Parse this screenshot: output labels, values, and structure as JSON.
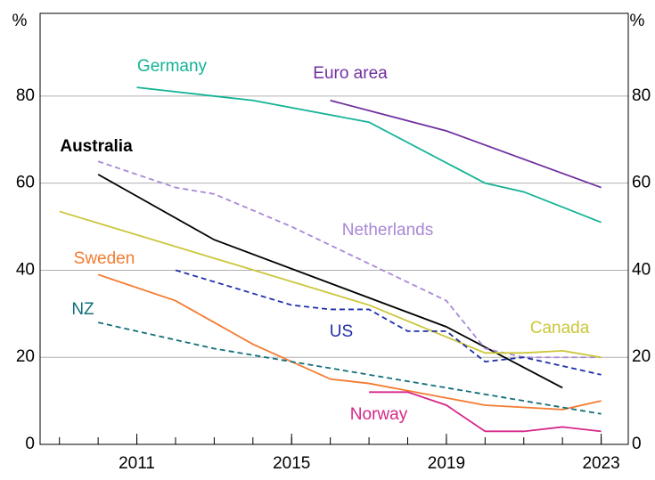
{
  "chart_data": {
    "type": "line",
    "y_unit_label": "%",
    "xlim": [
      2008.5,
      2023.7
    ],
    "xticks": [
      2011,
      2015,
      2019,
      2023
    ],
    "xminor_ticks": [
      2009,
      2010,
      2011,
      2012,
      2013,
      2014,
      2015,
      2016,
      2017,
      2018,
      2019,
      2020,
      2021,
      2022,
      2023
    ],
    "ylim": [
      0,
      99
    ],
    "yticks": [
      0,
      20,
      40,
      60,
      80
    ],
    "y2lim": [
      0,
      99
    ],
    "y2ticks": [
      0,
      20,
      40,
      60,
      80
    ],
    "grid": true,
    "series": [
      {
        "name": "Germany",
        "color": "#14b396",
        "dashed": false,
        "x": [
          2011,
          2014,
          2017,
          2020,
          2021,
          2023
        ],
        "values": [
          82,
          79,
          74,
          60,
          58,
          51
        ]
      },
      {
        "name": "Euro area",
        "color": "#7030a0",
        "dashed": false,
        "x": [
          2016,
          2019,
          2023
        ],
        "values": [
          79,
          72,
          59
        ]
      },
      {
        "name": "Australia",
        "color": "#000000",
        "dashed": false,
        "x": [
          2010,
          2013,
          2019,
          2022
        ],
        "values": [
          62,
          47,
          27,
          13
        ]
      },
      {
        "name": "Netherlands",
        "color": "#a987d6",
        "dashed": true,
        "x": [
          2010,
          2012,
          2013,
          2015,
          2019,
          2020,
          2021,
          2023
        ],
        "values": [
          65,
          59,
          57.5,
          50,
          33,
          22,
          20,
          20
        ]
      },
      {
        "name": "Canada",
        "color": "#cbc63a",
        "dashed": false,
        "x": [
          2009,
          2017,
          2020,
          2021,
          2022,
          2023
        ],
        "values": [
          53.5,
          32,
          21,
          21,
          21.5,
          20
        ]
      },
      {
        "name": "Sweden",
        "color": "#f47b30",
        "dashed": false,
        "x": [
          2010,
          2012,
          2014,
          2016,
          2017,
          2020,
          2022,
          2023
        ],
        "values": [
          39,
          33,
          23,
          15,
          14,
          9,
          8,
          10
        ]
      },
      {
        "name": "US",
        "color": "#1f2fa8",
        "dashed": true,
        "x": [
          2012,
          2015,
          2016,
          2017,
          2018,
          2019,
          2020,
          2021,
          2023
        ],
        "values": [
          40,
          32,
          31,
          31,
          26,
          26,
          19,
          20,
          16
        ]
      },
      {
        "name": "NZ",
        "color": "#136f7a",
        "dashed": true,
        "x": [
          2010,
          2013,
          2017,
          2023
        ],
        "values": [
          28,
          22,
          16,
          7
        ]
      },
      {
        "name": "Norway",
        "color": "#d6278a",
        "dashed": false,
        "x": [
          2017,
          2018,
          2019,
          2020,
          2021,
          2022,
          2023
        ],
        "values": [
          12,
          12,
          9,
          3,
          3,
          4,
          3
        ]
      }
    ]
  }
}
